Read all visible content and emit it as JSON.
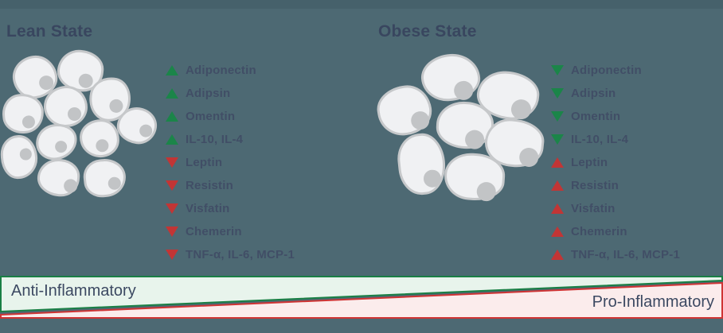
{
  "colors": {
    "background": "#4d6973",
    "top_band": "#46616b",
    "title_text": "#39465f",
    "list_text": "#414e66",
    "up_green": "#1b8549",
    "down_red": "#c23535",
    "wedge_green_border": "#1a7f45",
    "wedge_green_fill": "#e8f4ec",
    "wedge_red_border": "#cf3434",
    "wedge_red_fill": "#fbecec",
    "wedge_text": "#3c4962",
    "cell_fill": "#f0f1f3",
    "cell_border": "#c6c8ca",
    "cell_nucleus": "#c2c4c6"
  },
  "lean": {
    "title": "Lean State",
    "cell_count": 11,
    "cell_size": "small",
    "items": [
      {
        "icon": "up-arrow-icon",
        "direction": "up",
        "color": "green",
        "label": "Adiponectin"
      },
      {
        "icon": "up-arrow-icon",
        "direction": "up",
        "color": "green",
        "label": "Adipsin"
      },
      {
        "icon": "up-arrow-icon",
        "direction": "up",
        "color": "green",
        "label": "Omentin"
      },
      {
        "icon": "up-arrow-icon",
        "direction": "up",
        "color": "green",
        "label": "IL-10, IL-4"
      },
      {
        "icon": "down-arrow-icon",
        "direction": "down",
        "color": "red",
        "label": "Leptin"
      },
      {
        "icon": "down-arrow-icon",
        "direction": "down",
        "color": "red",
        "label": "Resistin"
      },
      {
        "icon": "down-arrow-icon",
        "direction": "down",
        "color": "red",
        "label": "Visfatin"
      },
      {
        "icon": "down-arrow-icon",
        "direction": "down",
        "color": "red",
        "label": "Chemerin"
      },
      {
        "icon": "down-arrow-icon",
        "direction": "down",
        "color": "red",
        "label": "TNF-α, IL-6, MCP-1"
      }
    ]
  },
  "obese": {
    "title": "Obese State",
    "cell_count": 7,
    "cell_size": "large",
    "items": [
      {
        "icon": "down-arrow-icon",
        "direction": "down",
        "color": "green",
        "label": "Adiponectin"
      },
      {
        "icon": "down-arrow-icon",
        "direction": "down",
        "color": "green",
        "label": "Adipsin"
      },
      {
        "icon": "down-arrow-icon",
        "direction": "down",
        "color": "green",
        "label": "Omentin"
      },
      {
        "icon": "down-arrow-icon",
        "direction": "down",
        "color": "green",
        "label": "IL-10, IL-4"
      },
      {
        "icon": "up-arrow-icon",
        "direction": "up",
        "color": "red",
        "label": "Leptin"
      },
      {
        "icon": "up-arrow-icon",
        "direction": "up",
        "color": "red",
        "label": "Resistin"
      },
      {
        "icon": "up-arrow-icon",
        "direction": "up",
        "color": "red",
        "label": "Visfatin"
      },
      {
        "icon": "up-arrow-icon",
        "direction": "up",
        "color": "red",
        "label": "Chemerin"
      },
      {
        "icon": "up-arrow-icon",
        "direction": "up",
        "color": "red",
        "label": "TNF-α, IL-6, MCP-1"
      }
    ]
  },
  "gradient_bar": {
    "anti_label": "Anti-Inflammatory",
    "pro_label": "Pro-Inflammatory"
  }
}
